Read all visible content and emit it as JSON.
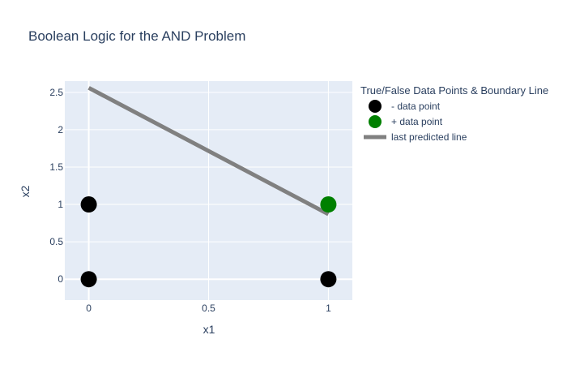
{
  "chart_data": {
    "type": "scatter",
    "title": "Boolean Logic for the AND Problem",
    "xlabel": "x1",
    "ylabel": "x2",
    "xlim": [
      -0.1,
      1.1
    ],
    "ylim": [
      -0.28,
      2.65
    ],
    "x_ticks": [
      0,
      0.5,
      1
    ],
    "x_tick_labels": [
      "0",
      "0.5",
      "1"
    ],
    "y_ticks": [
      0,
      0.5,
      1,
      1.5,
      2,
      2.5
    ],
    "y_tick_labels": [
      "0",
      "0.5",
      "1",
      "1.5",
      "2",
      "2.5"
    ],
    "grid": true,
    "plot_background": "#E5ECF6",
    "legend": {
      "title": "True/False Data Points & Boundary Line",
      "position": "right"
    },
    "series": [
      {
        "name": "- data point",
        "mode": "markers",
        "color": "#000000",
        "x": [
          0,
          0,
          1
        ],
        "y": [
          0,
          1,
          0
        ]
      },
      {
        "name": "+ data point",
        "mode": "markers",
        "color": "#008000",
        "x": [
          1
        ],
        "y": [
          1
        ]
      },
      {
        "name": "last predicted line",
        "mode": "line",
        "color": "#808080",
        "x": [
          0,
          1
        ],
        "y": [
          2.56,
          0.87
        ]
      }
    ]
  }
}
